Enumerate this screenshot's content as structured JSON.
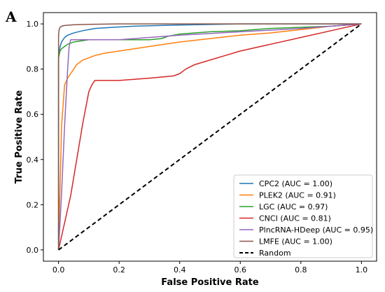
{
  "panel_label": "A",
  "chart_data": {
    "type": "line",
    "title": "",
    "xlabel": "False Positive Rate",
    "ylabel": "True Positive Rate",
    "xlim": [
      -0.05,
      1.05
    ],
    "ylim": [
      -0.05,
      1.05
    ],
    "xticks": [
      0.0,
      0.2,
      0.4,
      0.6,
      0.8,
      1.0
    ],
    "yticks": [
      0.0,
      0.2,
      0.4,
      0.6,
      0.8,
      1.0
    ],
    "xtick_labels": [
      "0.0",
      "0.2",
      "0.4",
      "0.6",
      "0.8",
      "1.0"
    ],
    "ytick_labels": [
      "0.0",
      "0.2",
      "0.4",
      "0.6",
      "0.8",
      "1.0"
    ],
    "grid": false,
    "legend_position": "lower-right",
    "series": [
      {
        "name": "CPC2 (AUC = 1.00)",
        "color": "#1f77b4",
        "x": [
          0,
          0.0,
          0.005,
          0.01,
          0.02,
          0.03,
          0.05,
          0.08,
          0.12,
          0.18,
          0.25,
          0.4,
          0.6,
          1.0
        ],
        "y": [
          0,
          0.85,
          0.9,
          0.92,
          0.94,
          0.95,
          0.96,
          0.97,
          0.98,
          0.985,
          0.99,
          0.995,
          1.0,
          1.0
        ]
      },
      {
        "name": "PLEK2 (AUC = 0.91)",
        "color": "#ff7f0e",
        "x": [
          0,
          0.01,
          0.02,
          0.03,
          0.04,
          0.05,
          0.06,
          0.08,
          0.1,
          0.12,
          0.15,
          0.2,
          0.3,
          0.4,
          0.5,
          0.6,
          0.7,
          0.8,
          0.9,
          1.0
        ],
        "y": [
          0,
          0.55,
          0.73,
          0.76,
          0.78,
          0.8,
          0.82,
          0.84,
          0.85,
          0.86,
          0.87,
          0.88,
          0.9,
          0.92,
          0.935,
          0.95,
          0.96,
          0.975,
          0.99,
          1.0
        ]
      },
      {
        "name": "LGC (AUC = 0.97)",
        "color": "#2ca02c",
        "x": [
          0,
          0.0,
          0.005,
          0.01,
          0.02,
          0.03,
          0.05,
          0.1,
          0.2,
          0.3,
          0.34,
          0.36,
          0.38,
          0.4,
          0.45,
          0.5,
          0.6,
          0.7,
          0.8,
          0.9,
          1.0
        ],
        "y": [
          0,
          0.85,
          0.88,
          0.89,
          0.9,
          0.91,
          0.92,
          0.93,
          0.93,
          0.93,
          0.935,
          0.945,
          0.95,
          0.955,
          0.96,
          0.965,
          0.97,
          0.98,
          0.985,
          0.99,
          1.0
        ]
      },
      {
        "name": "CNCI (AUC = 0.81)",
        "color": "#d62728",
        "x": [
          0,
          0.01,
          0.02,
          0.03,
          0.04,
          0.05,
          0.06,
          0.07,
          0.08,
          0.09,
          0.1,
          0.11,
          0.12,
          0.2,
          0.3,
          0.38,
          0.4,
          0.42,
          0.45,
          0.5,
          0.55,
          0.6,
          0.7,
          0.8,
          0.9,
          1.0
        ],
        "y": [
          0,
          0.06,
          0.12,
          0.18,
          0.24,
          0.32,
          0.4,
          0.48,
          0.56,
          0.63,
          0.7,
          0.73,
          0.75,
          0.75,
          0.76,
          0.77,
          0.78,
          0.8,
          0.82,
          0.84,
          0.86,
          0.88,
          0.91,
          0.94,
          0.97,
          1.0
        ]
      },
      {
        "name": "PlncRNA-HDeep (AUC = 0.95)",
        "color": "#9467bd",
        "x": [
          0,
          0.01,
          0.02,
          0.03,
          0.035,
          0.04,
          0.2,
          0.4,
          0.6,
          0.8,
          1.0
        ],
        "y": [
          0,
          0.25,
          0.55,
          0.8,
          0.9,
          0.93,
          0.93,
          0.95,
          0.965,
          0.98,
          1.0
        ]
      },
      {
        "name": "LMFE (AUC = 1.00)",
        "color": "#8c564b",
        "x": [
          0,
          0.0,
          0.002,
          0.005,
          0.01,
          0.02,
          0.05,
          0.1,
          0.2,
          1.0
        ],
        "y": [
          0,
          0.95,
          0.975,
          0.985,
          0.99,
          0.993,
          0.996,
          0.998,
          1.0,
          1.0
        ]
      },
      {
        "name": "Random",
        "color": "#000000",
        "dashed": true,
        "x": [
          0,
          1
        ],
        "y": [
          0,
          1
        ]
      }
    ]
  }
}
